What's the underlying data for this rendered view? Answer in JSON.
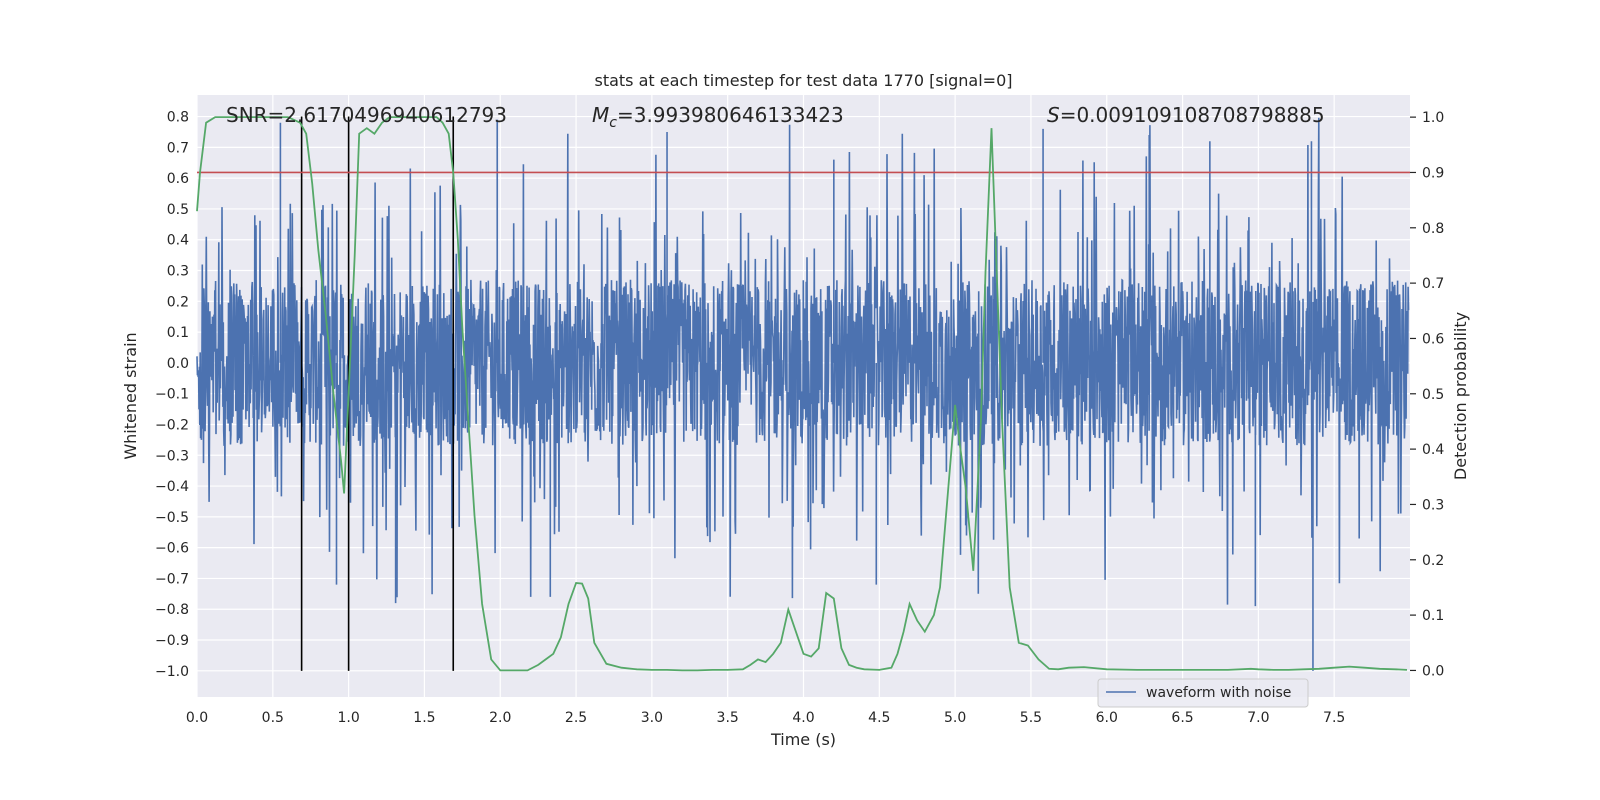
{
  "chart_data": {
    "type": "line",
    "title": "stats at each timestep for test data 1770 [signal=0]",
    "xlabel": "Time (s)",
    "ylabel_left": "Whitened strain",
    "ylabel_right": "Detection probability",
    "xlim": [
      0.0,
      8.0
    ],
    "ylim_left": [
      -1.085,
      0.87
    ],
    "ylim_right": [
      -0.048,
      1.04
    ],
    "x_ticks": [
      "0.0",
      "0.5",
      "1.0",
      "1.5",
      "2.0",
      "2.5",
      "3.0",
      "3.5",
      "4.0",
      "4.5",
      "5.0",
      "5.5",
      "6.0",
      "6.5",
      "7.0",
      "7.5"
    ],
    "y_ticks_left": [
      "0.8",
      "0.7",
      "0.6",
      "0.5",
      "0.4",
      "0.3",
      "0.2",
      "0.1",
      "0.0",
      "−0.1",
      "−0.2",
      "−0.3",
      "−0.4",
      "−0.5",
      "−0.6",
      "−0.7",
      "−0.8",
      "−0.9",
      "−1.0"
    ],
    "y_ticks_right": [
      "1.0",
      "0.9",
      "0.8",
      "0.7",
      "0.6",
      "0.5",
      "0.4",
      "0.3",
      "0.2",
      "0.1",
      "0.0"
    ],
    "grid": true,
    "legend_position": "lower-right",
    "annotations": {
      "snr": "SNR=2.6170496940612793",
      "mc_symbol": "M",
      "mc_sub": "c",
      "mc_value": "=3.993980646133423",
      "s_symbol": "S",
      "s_value": "=0.009109108708798885"
    },
    "threshold": {
      "value": 0.9,
      "axis": "right",
      "color": "#c44e52"
    },
    "vertical_lines": {
      "x": [
        0.69,
        1.0,
        1.69
      ],
      "y_range": [
        -1.0,
        0.8
      ],
      "color": "#000000"
    },
    "series": [
      {
        "name": "waveform with noise",
        "axis": "left",
        "color": "#4c72b0",
        "kind": "noise",
        "core_amplitude": 0.27,
        "peak_range": [
          0.63,
          0.8
        ],
        "trough_range": [
          -0.8,
          -1.0
        ],
        "x_range": [
          0.0,
          7.99
        ]
      },
      {
        "axis": "right",
        "color": "#55a868",
        "x": [
          0.0,
          0.02,
          0.06,
          0.12,
          0.2,
          0.3,
          0.4,
          0.5,
          0.6,
          0.68,
          0.72,
          0.76,
          0.8,
          0.85,
          0.9,
          0.95,
          0.97,
          1.0,
          1.04,
          1.07,
          1.12,
          1.17,
          1.22,
          1.27,
          1.33,
          1.4,
          1.5,
          1.58,
          1.62,
          1.66,
          1.69,
          1.72,
          1.75,
          1.79,
          1.83,
          1.88,
          1.94,
          2.0,
          2.06,
          2.12,
          2.18,
          2.25,
          2.3,
          2.35,
          2.4,
          2.45,
          2.5,
          2.54,
          2.58,
          2.62,
          2.7,
          2.8,
          2.9,
          3.0,
          3.1,
          3.2,
          3.3,
          3.4,
          3.5,
          3.6,
          3.65,
          3.7,
          3.75,
          3.8,
          3.85,
          3.9,
          3.95,
          4.0,
          4.05,
          4.1,
          4.15,
          4.2,
          4.25,
          4.3,
          4.35,
          4.4,
          4.5,
          4.58,
          4.62,
          4.66,
          4.7,
          4.75,
          4.8,
          4.86,
          4.9,
          4.94,
          4.97,
          5.0,
          5.03,
          5.07,
          5.12,
          5.17,
          5.2,
          5.24,
          5.27,
          5.31,
          5.36,
          5.42,
          5.48,
          5.55,
          5.62,
          5.68,
          5.75,
          5.85,
          6.0,
          6.2,
          6.5,
          6.8,
          6.95,
          7.0,
          7.1,
          7.2,
          7.3,
          7.4,
          7.5,
          7.6,
          7.7,
          7.8,
          7.9,
          7.98
        ],
        "y": [
          0.83,
          0.9,
          0.99,
          1.0,
          1.0,
          1.0,
          1.0,
          1.0,
          1.0,
          0.99,
          0.97,
          0.88,
          0.76,
          0.64,
          0.5,
          0.38,
          0.32,
          0.5,
          0.75,
          0.97,
          0.98,
          0.97,
          0.99,
          1.0,
          1.0,
          1.0,
          1.0,
          1.0,
          0.99,
          0.97,
          0.9,
          0.78,
          0.62,
          0.45,
          0.28,
          0.12,
          0.02,
          0.0,
          0.0,
          0.0,
          0.0,
          0.01,
          0.02,
          0.03,
          0.06,
          0.12,
          0.158,
          0.157,
          0.13,
          0.05,
          0.012,
          0.005,
          0.002,
          0.001,
          0.001,
          0.0,
          0.0,
          0.001,
          0.001,
          0.002,
          0.01,
          0.02,
          0.015,
          0.03,
          0.05,
          0.11,
          0.07,
          0.03,
          0.025,
          0.04,
          0.14,
          0.13,
          0.04,
          0.01,
          0.005,
          0.002,
          0.001,
          0.005,
          0.03,
          0.07,
          0.12,
          0.09,
          0.07,
          0.1,
          0.15,
          0.28,
          0.38,
          0.48,
          0.41,
          0.33,
          0.18,
          0.45,
          0.72,
          0.98,
          0.75,
          0.45,
          0.15,
          0.05,
          0.045,
          0.02,
          0.003,
          0.002,
          0.005,
          0.006,
          0.002,
          0.001,
          0.001,
          0.001,
          0.003,
          0.002,
          0.001,
          0.001,
          0.002,
          0.003,
          0.005,
          0.007,
          0.005,
          0.003,
          0.002,
          0.001
        ]
      }
    ]
  }
}
